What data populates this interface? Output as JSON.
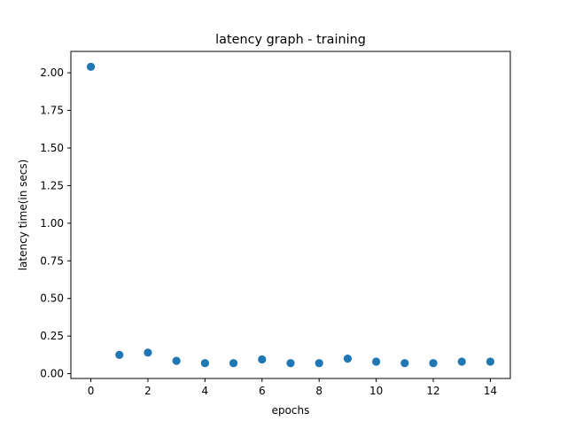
{
  "chart_data": {
    "type": "scatter",
    "title": "latency graph - training",
    "xlabel": "epochs",
    "ylabel": "latency time(in secs)",
    "x": [
      0,
      1,
      2,
      3,
      4,
      5,
      6,
      7,
      8,
      9,
      10,
      11,
      12,
      13,
      14
    ],
    "y": [
      2.04,
      0.125,
      0.14,
      0.085,
      0.07,
      0.07,
      0.095,
      0.07,
      0.07,
      0.1,
      0.08,
      0.07,
      0.07,
      0.08,
      0.08
    ],
    "xlim": [
      -0.7,
      14.7
    ],
    "ylim": [
      -0.032,
      2.142
    ],
    "x_ticks": [
      0,
      2,
      4,
      6,
      8,
      10,
      12,
      14
    ],
    "x_tick_labels": [
      "0",
      "2",
      "4",
      "6",
      "8",
      "10",
      "12",
      "14"
    ],
    "y_ticks": [
      0.0,
      0.25,
      0.5,
      0.75,
      1.0,
      1.25,
      1.5,
      1.75,
      2.0
    ],
    "y_tick_labels": [
      "0.00",
      "0.25",
      "0.50",
      "0.75",
      "1.00",
      "1.25",
      "1.50",
      "1.75",
      "2.00"
    ],
    "grid": false,
    "marker_color": "#1f77b4"
  }
}
